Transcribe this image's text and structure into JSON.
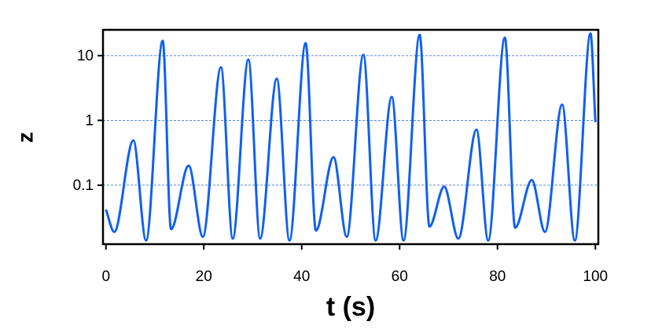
{
  "chart_data": {
    "type": "line",
    "x_label": "t (s)",
    "y_label": "z",
    "log_y": true,
    "grid": true,
    "color": "#1060f0",
    "xlim": [
      -0.6,
      100.6
    ],
    "xticks": [
      0,
      20,
      40,
      60,
      80,
      100
    ],
    "ylim": [
      0.0123,
      25
    ],
    "yticks": [
      0.1,
      1,
      10
    ],
    "x": [
      0,
      1.7,
      5.6,
      8.2,
      11.6,
      13.3,
      16.9,
      19.8,
      23.5,
      25.9,
      29.1,
      31.5,
      34.9,
      37.5,
      40.8,
      42.9,
      46.5,
      49.2,
      52.6,
      55.1,
      58.4,
      60.8,
      64.1,
      66.1,
      69.1,
      72.0,
      75.7,
      78.1,
      81.5,
      83.6,
      87.0,
      89.7,
      93.2,
      95.8,
      99.0,
      100
    ],
    "values": [
      0.042,
      0.019,
      0.49,
      0.014,
      17,
      0.021,
      0.2,
      0.016,
      6.6,
      0.015,
      8.7,
      0.015,
      4.4,
      0.014,
      15.6,
      0.02,
      0.27,
      0.016,
      10.3,
      0.014,
      2.3,
      0.014,
      21,
      0.023,
      0.095,
      0.015,
      0.72,
      0.014,
      19,
      0.022,
      0.12,
      0.019,
      1.75,
      0.014,
      22,
      0.94
    ]
  }
}
